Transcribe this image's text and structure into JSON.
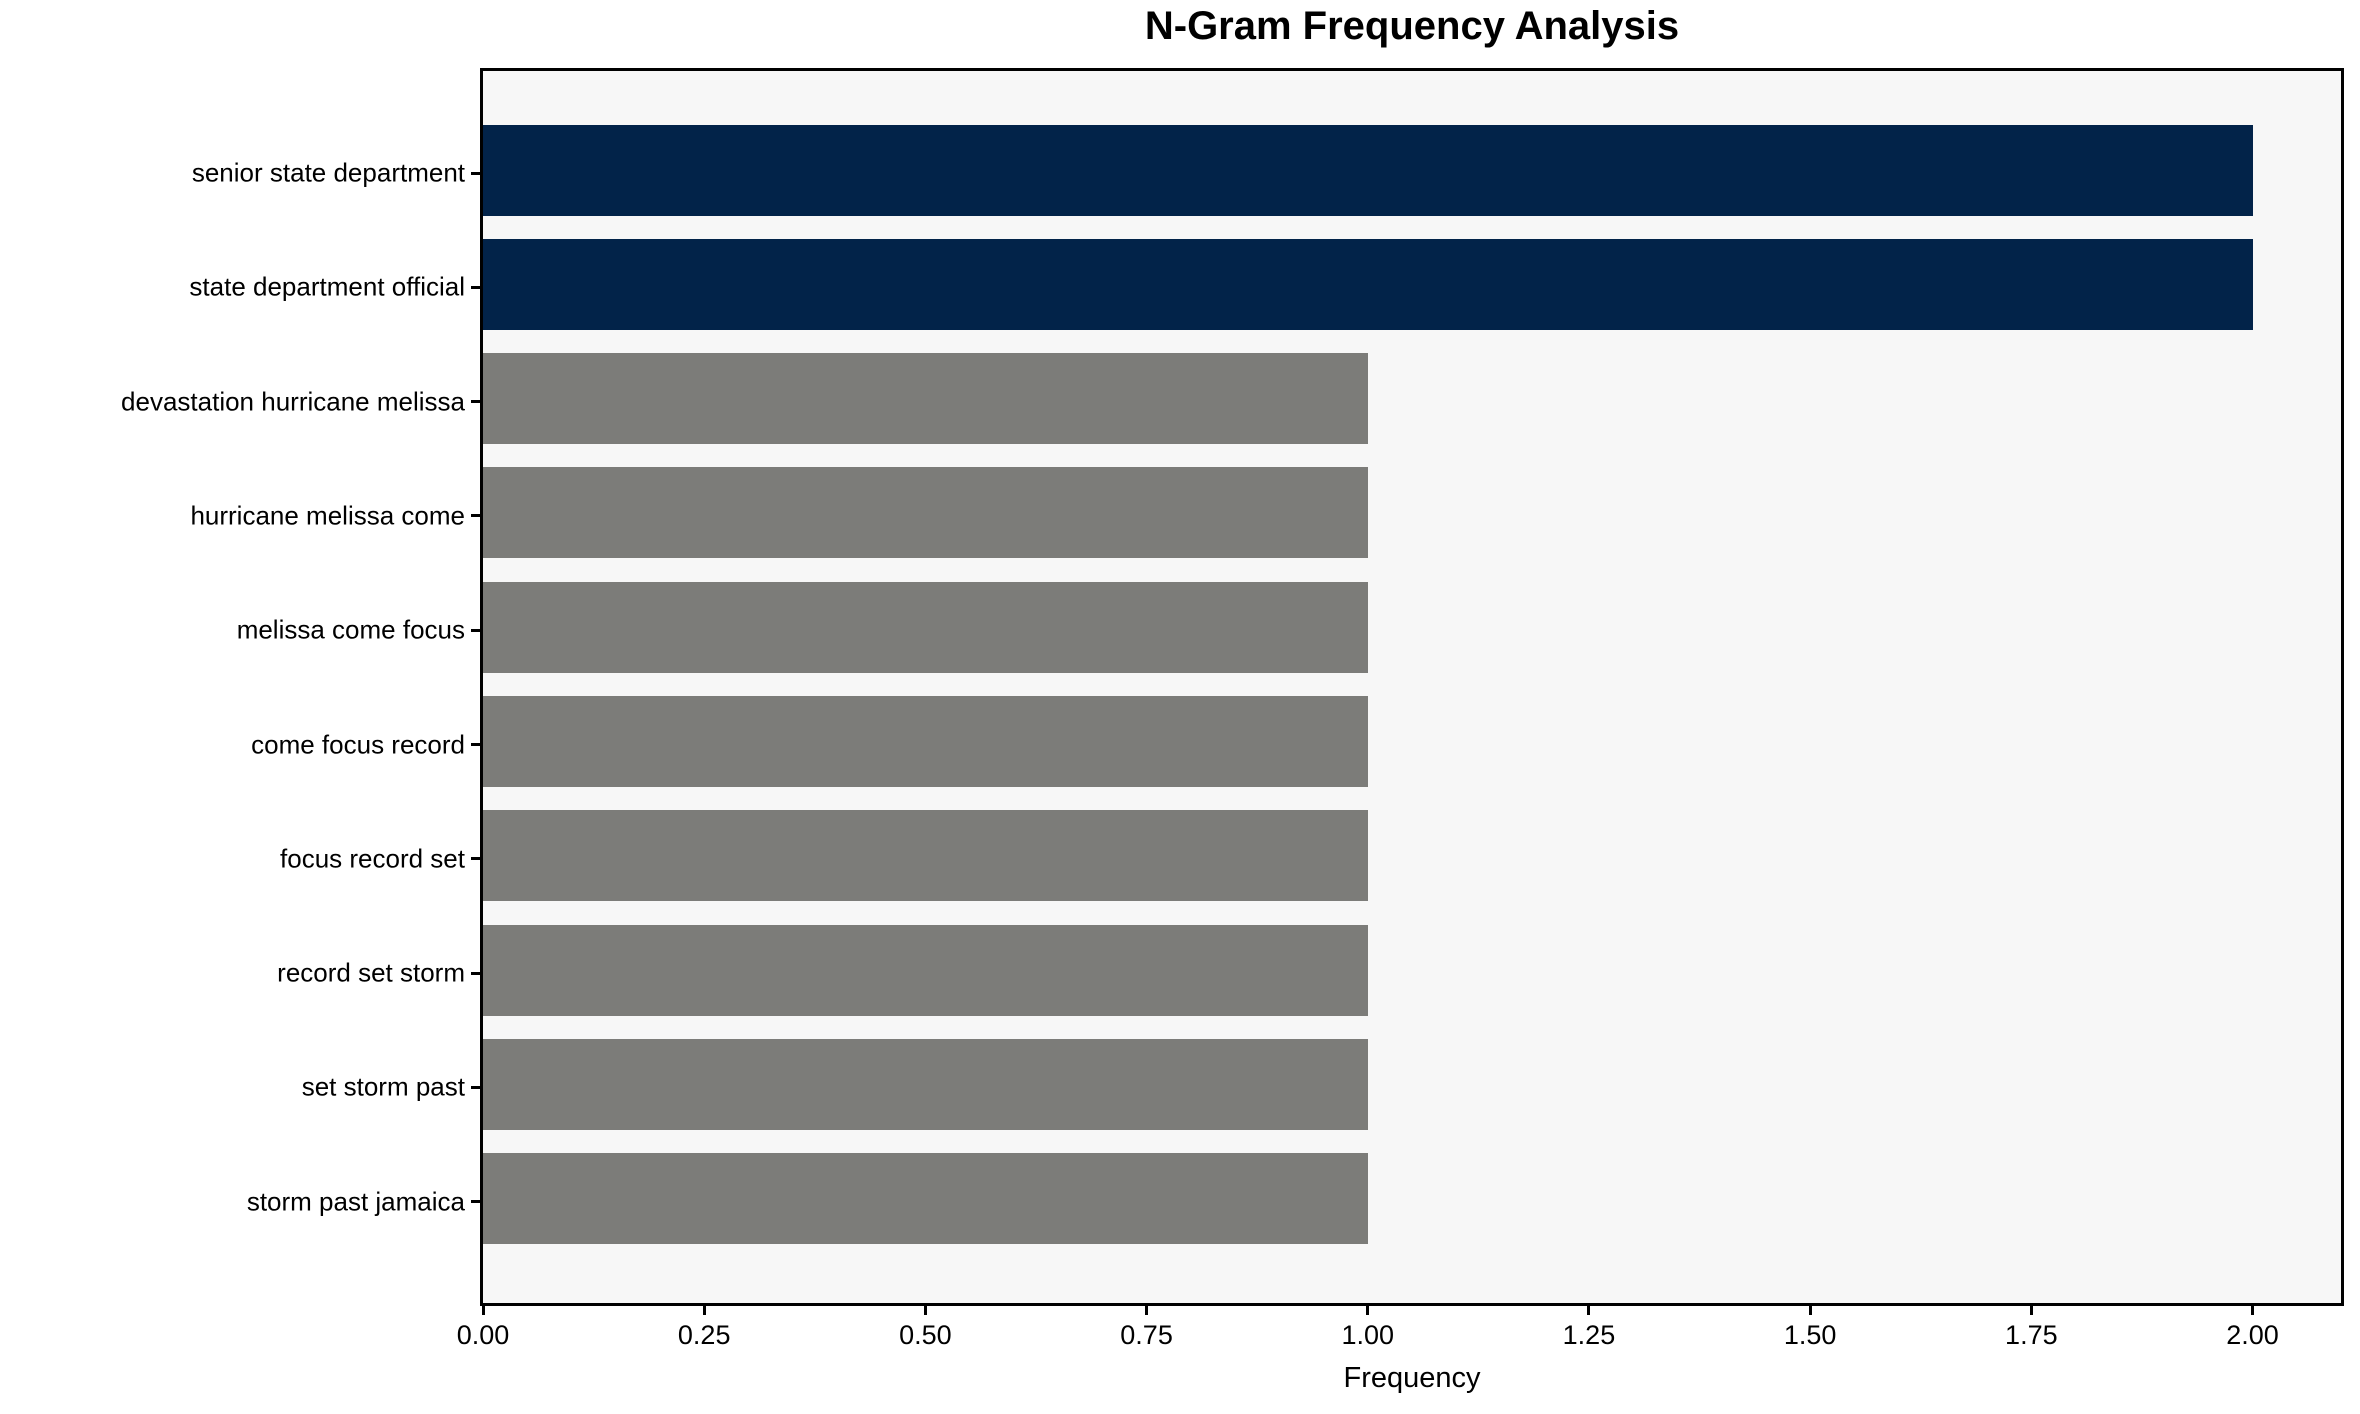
{
  "chart_data": {
    "type": "bar",
    "orientation": "horizontal",
    "title": "N-Gram Frequency Analysis",
    "xlabel": "Frequency",
    "ylabel": "",
    "categories": [
      "senior state department",
      "state department official",
      "devastation hurricane melissa",
      "hurricane melissa come",
      "melissa come focus",
      "come focus record",
      "focus record set",
      "record set storm",
      "set storm past",
      "storm past jamaica"
    ],
    "values": [
      2,
      2,
      1,
      1,
      1,
      1,
      1,
      1,
      1,
      1
    ],
    "x_ticks": [
      {
        "value": 0.0,
        "label": "0.00"
      },
      {
        "value": 0.25,
        "label": "0.25"
      },
      {
        "value": 0.5,
        "label": "0.50"
      },
      {
        "value": 0.75,
        "label": "0.75"
      },
      {
        "value": 1.0,
        "label": "1.00"
      },
      {
        "value": 1.25,
        "label": "1.25"
      },
      {
        "value": 1.5,
        "label": "1.50"
      },
      {
        "value": 1.75,
        "label": "1.75"
      },
      {
        "value": 2.0,
        "label": "2.00"
      }
    ],
    "xlim": [
      0,
      2.1
    ],
    "grid": false,
    "legend": null,
    "colors": {
      "highlight_bar": "#022349",
      "default_bar": "#7c7c79",
      "plot_background": "#f7f7f7",
      "figure_background": "#ffffff",
      "spine": "#000000",
      "text": "#000000"
    },
    "bar_colors": [
      "#022349",
      "#022349",
      "#7c7c79",
      "#7c7c79",
      "#7c7c79",
      "#7c7c79",
      "#7c7c79",
      "#7c7c79",
      "#7c7c79",
      "#7c7c79"
    ]
  }
}
